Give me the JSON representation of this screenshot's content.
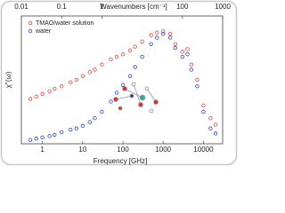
{
  "chart_data": {
    "type": "scatter",
    "xlabel": "Frequency [GHz]",
    "x2label": "Wavenumbers [cm⁻¹]",
    "ylabel": "χ''(ω)",
    "x": [
      0.5,
      0.7,
      1,
      1.5,
      2,
      3,
      5,
      7,
      10,
      15,
      20,
      30,
      50,
      70,
      100,
      150,
      200,
      300,
      500,
      700,
      1000,
      1500,
      2000,
      3000,
      4000,
      5000,
      7000,
      10000,
      15000,
      20000
    ],
    "series": [
      {
        "name": "TMAO/water solution",
        "color": "#e0483c",
        "values": [
          0.35,
          0.37,
          0.39,
          0.41,
          0.43,
          0.45,
          0.48,
          0.5,
          0.53,
          0.56,
          0.58,
          0.62,
          0.66,
          0.68,
          0.7,
          0.73,
          0.76,
          0.8,
          0.85,
          0.87,
          0.88,
          0.86,
          0.78,
          0.72,
          0.74,
          0.62,
          0.5,
          0.3,
          0.2,
          0.15
        ]
      },
      {
        "name": "water",
        "color": "#3446c8",
        "values": [
          0.03,
          0.04,
          0.05,
          0.06,
          0.07,
          0.09,
          0.11,
          0.12,
          0.14,
          0.17,
          0.2,
          0.25,
          0.33,
          0.4,
          0.46,
          0.53,
          0.6,
          0.68,
          0.78,
          0.83,
          0.86,
          0.83,
          0.75,
          0.68,
          0.7,
          0.58,
          0.45,
          0.25,
          0.12,
          0.08
        ]
      }
    ],
    "xlim": [
      0.3,
      30000
    ],
    "xscale": "log",
    "xticks": [
      1,
      10,
      100,
      1000,
      10000
    ],
    "x2lim": [
      0.01,
      1000
    ],
    "x2scale": "log",
    "x2ticks": [
      0.01,
      0.1,
      1,
      100,
      1000
    ],
    "ylim": [
      0,
      1
    ],
    "legend": "upper left"
  }
}
